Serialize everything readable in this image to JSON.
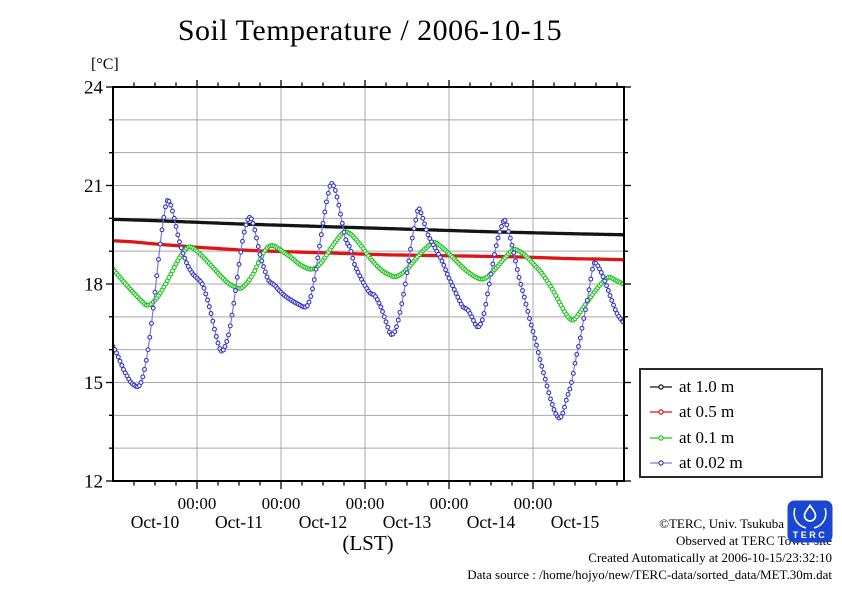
{
  "title": "Soil Temperature / 2006-10-15",
  "y_unit_label": "[°C]",
  "x_axis_label": "(LST)",
  "footer": {
    "copyright": "©TERC, Univ. Tsukuba",
    "observed": "Observed at TERC Tower site",
    "created": "Created Automatically at 2006-10-15/23:32:10",
    "data_source": "Data source : /home/hojyo/new/TERC-data/sorted_data/MET.30m.dat"
  },
  "logo_text": "TERC",
  "chart_data": {
    "type": "line",
    "title": "Soil Temperature / 2006-10-15",
    "xlabel": "(LST)",
    "ylabel": "[°C]",
    "x_unit": "hours since 2006-10-10 00:00 LST",
    "xlim": [
      0,
      146
    ],
    "ylim": [
      12,
      24
    ],
    "grid": true,
    "grid_color": "#a9a9a9",
    "axis_color": "#000000",
    "y_major_ticks": [
      24,
      21,
      18,
      15,
      12
    ],
    "y_minor_step": 1,
    "x_gridlines_hours": [
      24,
      48,
      72,
      96,
      120
    ],
    "x_major_tick_labels": [
      "00:00",
      "00:00",
      "00:00",
      "00:00",
      "00:00"
    ],
    "x_minor_step_hours": 6,
    "day_labels": [
      "Oct-10",
      "Oct-11",
      "Oct-12",
      "Oct-13",
      "Oct-14",
      "Oct-15"
    ],
    "legend_position": "outside-right-bottom",
    "marker_every_hours": 0.5,
    "series": [
      {
        "name": "at 1.0 m",
        "color": "#141414",
        "marker": "dot",
        "points": [
          [
            0,
            19.97
          ],
          [
            12,
            19.93
          ],
          [
            24,
            19.88
          ],
          [
            36,
            19.83
          ],
          [
            48,
            19.79
          ],
          [
            60,
            19.75
          ],
          [
            72,
            19.71
          ],
          [
            84,
            19.67
          ],
          [
            96,
            19.63
          ],
          [
            108,
            19.59
          ],
          [
            120,
            19.56
          ],
          [
            132,
            19.53
          ],
          [
            145.7,
            19.5
          ]
        ]
      },
      {
        "name": "at 0.5 m",
        "color": "#e01414",
        "marker": "dot",
        "points": [
          [
            0,
            19.32
          ],
          [
            6,
            19.28
          ],
          [
            12,
            19.22
          ],
          [
            18,
            19.17
          ],
          [
            24,
            19.12
          ],
          [
            30,
            19.08
          ],
          [
            36,
            19.04
          ],
          [
            42,
            19.01
          ],
          [
            48,
            18.99
          ],
          [
            54,
            18.97
          ],
          [
            60,
            18.95
          ],
          [
            66,
            18.93
          ],
          [
            72,
            18.91
          ],
          [
            78,
            18.89
          ],
          [
            84,
            18.88
          ],
          [
            90,
            18.87
          ],
          [
            96,
            18.86
          ],
          [
            102,
            18.85
          ],
          [
            108,
            18.84
          ],
          [
            114,
            18.83
          ],
          [
            120,
            18.81
          ],
          [
            126,
            18.79
          ],
          [
            132,
            18.77
          ],
          [
            138,
            18.76
          ],
          [
            145.7,
            18.74
          ]
        ]
      },
      {
        "name": "at 0.1 m",
        "color": "#1dc41d",
        "marker": "open-circle",
        "points": [
          [
            0,
            18.45
          ],
          [
            2,
            18.2
          ],
          [
            4,
            17.95
          ],
          [
            6,
            17.72
          ],
          [
            8,
            17.5
          ],
          [
            9.5,
            17.36
          ],
          [
            11,
            17.4
          ],
          [
            13,
            17.65
          ],
          [
            15,
            18.0
          ],
          [
            17,
            18.4
          ],
          [
            19,
            18.8
          ],
          [
            21.5,
            19.12
          ],
          [
            23,
            19.08
          ],
          [
            25,
            18.9
          ],
          [
            27,
            18.68
          ],
          [
            29,
            18.45
          ],
          [
            31,
            18.22
          ],
          [
            33,
            18.02
          ],
          [
            35,
            17.9
          ],
          [
            36.5,
            17.87
          ],
          [
            38,
            18.0
          ],
          [
            40,
            18.3
          ],
          [
            42,
            18.75
          ],
          [
            44,
            19.1
          ],
          [
            45.5,
            19.17
          ],
          [
            47,
            19.1
          ],
          [
            49,
            18.95
          ],
          [
            51,
            18.8
          ],
          [
            53,
            18.62
          ],
          [
            55,
            18.5
          ],
          [
            56.5,
            18.45
          ],
          [
            58,
            18.5
          ],
          [
            60,
            18.72
          ],
          [
            62,
            19.05
          ],
          [
            64,
            19.35
          ],
          [
            66,
            19.58
          ],
          [
            67.5,
            19.55
          ],
          [
            69,
            19.4
          ],
          [
            71,
            19.15
          ],
          [
            73,
            18.85
          ],
          [
            75,
            18.6
          ],
          [
            77,
            18.4
          ],
          [
            79,
            18.28
          ],
          [
            80.5,
            18.22
          ],
          [
            82,
            18.28
          ],
          [
            84,
            18.45
          ],
          [
            86,
            18.7
          ],
          [
            88,
            18.95
          ],
          [
            90,
            19.15
          ],
          [
            91.5,
            19.27
          ],
          [
            93,
            19.2
          ],
          [
            95,
            19.02
          ],
          [
            97,
            18.82
          ],
          [
            99,
            18.6
          ],
          [
            101,
            18.4
          ],
          [
            103,
            18.25
          ],
          [
            105,
            18.15
          ],
          [
            106.5,
            18.18
          ],
          [
            108,
            18.32
          ],
          [
            110,
            18.55
          ],
          [
            112,
            18.8
          ],
          [
            114.5,
            19.05
          ],
          [
            116,
            19.0
          ],
          [
            118,
            18.85
          ],
          [
            120,
            18.62
          ],
          [
            122,
            18.4
          ],
          [
            124,
            18.1
          ],
          [
            126,
            17.75
          ],
          [
            128,
            17.35
          ],
          [
            130,
            17.0
          ],
          [
            131.5,
            16.9
          ],
          [
            133,
            17.08
          ],
          [
            135,
            17.38
          ],
          [
            137,
            17.68
          ],
          [
            139,
            17.95
          ],
          [
            141.5,
            18.2
          ],
          [
            143.5,
            18.12
          ],
          [
            145.7,
            18.0
          ]
        ]
      },
      {
        "name": "at 0.02 m",
        "color": "#3636c4",
        "line_color": "#7b7bdc",
        "marker": "open-circle",
        "points": [
          [
            0,
            16.1
          ],
          [
            1,
            15.9
          ],
          [
            2,
            15.65
          ],
          [
            3,
            15.4
          ],
          [
            4,
            15.2
          ],
          [
            5,
            15.02
          ],
          [
            6,
            14.92
          ],
          [
            7,
            14.87
          ],
          [
            8,
            15.0
          ],
          [
            9,
            15.4
          ],
          [
            10,
            16.0
          ],
          [
            11,
            16.8
          ],
          [
            12,
            17.75
          ],
          [
            13,
            18.75
          ],
          [
            14,
            19.65
          ],
          [
            15,
            20.35
          ],
          [
            15.6,
            20.55
          ],
          [
            16.5,
            20.4
          ],
          [
            17.5,
            20.0
          ],
          [
            18.5,
            19.5
          ],
          [
            19.5,
            19.1
          ],
          [
            21,
            18.65
          ],
          [
            22.5,
            18.35
          ],
          [
            24,
            18.18
          ],
          [
            25.5,
            18.0
          ],
          [
            26.5,
            17.7
          ],
          [
            28,
            17.1
          ],
          [
            29.5,
            16.4
          ],
          [
            30.8,
            15.97
          ],
          [
            31.8,
            16.05
          ],
          [
            33,
            16.45
          ],
          [
            34,
            17.05
          ],
          [
            35,
            17.8
          ],
          [
            36,
            18.6
          ],
          [
            37,
            19.3
          ],
          [
            38,
            19.8
          ],
          [
            39,
            20.03
          ],
          [
            40,
            19.85
          ],
          [
            41,
            19.4
          ],
          [
            42,
            18.9
          ],
          [
            43.4,
            18.4
          ],
          [
            44.5,
            18.1
          ],
          [
            46,
            17.98
          ],
          [
            47.5,
            17.8
          ],
          [
            49,
            17.65
          ],
          [
            51,
            17.5
          ],
          [
            53,
            17.38
          ],
          [
            55,
            17.3
          ],
          [
            56,
            17.45
          ],
          [
            57,
            17.85
          ],
          [
            58,
            18.45
          ],
          [
            59,
            19.15
          ],
          [
            60,
            19.85
          ],
          [
            61,
            20.5
          ],
          [
            62.3,
            21.05
          ],
          [
            63.5,
            20.85
          ],
          [
            64.5,
            20.4
          ],
          [
            65.5,
            19.85
          ],
          [
            66.5,
            19.35
          ],
          [
            67.7,
            19.1
          ],
          [
            69,
            18.6
          ],
          [
            70.5,
            18.25
          ],
          [
            72,
            17.95
          ],
          [
            73.5,
            17.72
          ],
          [
            74.8,
            17.65
          ],
          [
            76.5,
            17.3
          ],
          [
            78,
            16.85
          ],
          [
            79.3,
            16.48
          ],
          [
            80.5,
            16.55
          ],
          [
            81.5,
            16.9
          ],
          [
            82.5,
            17.4
          ],
          [
            83.5,
            18.0
          ],
          [
            84.5,
            18.7
          ],
          [
            85.5,
            19.4
          ],
          [
            86.5,
            19.95
          ],
          [
            87.3,
            20.3
          ],
          [
            88.5,
            20.0
          ],
          [
            90,
            19.5
          ],
          [
            92,
            19.1
          ],
          [
            94,
            18.7
          ],
          [
            95.5,
            18.3
          ],
          [
            97,
            17.95
          ],
          [
            98.5,
            17.6
          ],
          [
            100,
            17.3
          ],
          [
            101.3,
            17.22
          ],
          [
            102.5,
            17.0
          ],
          [
            104,
            16.7
          ],
          [
            105,
            16.78
          ],
          [
            106,
            17.1
          ],
          [
            107,
            17.7
          ],
          [
            108,
            18.3
          ],
          [
            109,
            18.9
          ],
          [
            110,
            19.4
          ],
          [
            111,
            19.75
          ],
          [
            111.9,
            19.95
          ],
          [
            113,
            19.6
          ],
          [
            114.5,
            18.95
          ],
          [
            116,
            18.2
          ],
          [
            117.5,
            17.6
          ],
          [
            119,
            16.95
          ],
          [
            120.5,
            16.35
          ],
          [
            122,
            15.7
          ],
          [
            123.5,
            15.1
          ],
          [
            125,
            14.5
          ],
          [
            126.5,
            14.05
          ],
          [
            127.6,
            13.92
          ],
          [
            128.6,
            14.1
          ],
          [
            129.6,
            14.5
          ],
          [
            131,
            15.0
          ],
          [
            132.2,
            15.7
          ],
          [
            133.4,
            16.3
          ],
          [
            134.5,
            16.95
          ],
          [
            135.5,
            17.5
          ],
          [
            136.5,
            18.15
          ],
          [
            137.4,
            18.62
          ],
          [
            138.2,
            18.6
          ],
          [
            139.5,
            18.35
          ],
          [
            141,
            17.95
          ],
          [
            142.5,
            17.5
          ],
          [
            144,
            17.1
          ],
          [
            145.7,
            16.85
          ]
        ]
      }
    ]
  }
}
